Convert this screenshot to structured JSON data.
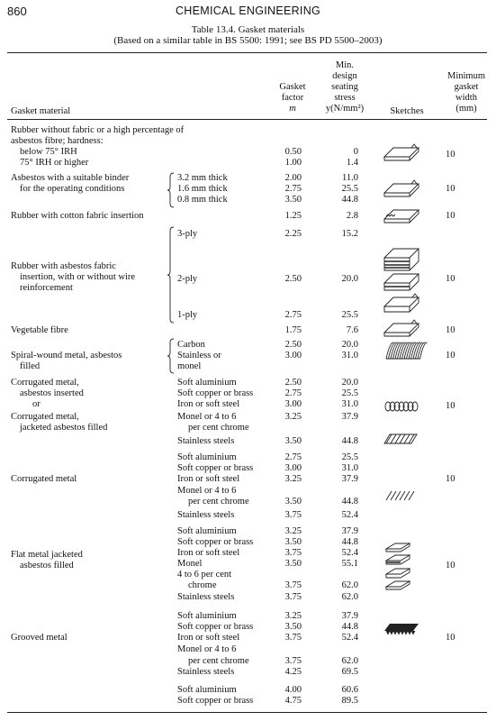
{
  "page": {
    "number": "860",
    "running_head": "CHEMICAL ENGINEERING"
  },
  "caption": {
    "line1": "Table 13.4.   Gasket materials",
    "line2": "(Based on a similar table in BS 5500: 1991; see BS PD 5500–2003)"
  },
  "headers": {
    "material": "Gasket material",
    "factor_l1": "Gasket",
    "factor_l2": "factor",
    "factor_l3": "m",
    "stress_l1": "Min.",
    "stress_l2": "design",
    "stress_l3": "seating",
    "stress_l4": "stress",
    "stress_l5": "y(N/mm²)",
    "sketches": "Sketches",
    "width_l1": "Minimum",
    "width_l2": "gasket",
    "width_l3": "width",
    "width_l4": "(mm)"
  },
  "rows": [
    {
      "material": [
        "Rubber without fabric or a high percentage of",
        "asbestos fibre; hardness:",
        "below 75° IRH",
        "75° IRH or higher"
      ],
      "m": [
        "0.50",
        "1.00"
      ],
      "y": [
        "0",
        "1.4"
      ],
      "width": "10"
    },
    {
      "material": [
        "Asbestos with a suitable binder",
        "for the operating conditions"
      ],
      "sub": [
        "3.2 mm thick",
        "1.6 mm thick",
        "0.8 mm thick"
      ],
      "m": [
        "2.00",
        "2.75",
        "3.50"
      ],
      "y": [
        "11.0",
        "25.5",
        "44.8"
      ],
      "width": "10"
    },
    {
      "material": [
        "Rubber with cotton fabric insertion"
      ],
      "m": [
        "1.25"
      ],
      "y": [
        "2.8"
      ],
      "width": "10"
    },
    {
      "material": [
        "Rubber with asbestos fabric",
        "insertion, with or without wire",
        "reinforcement"
      ],
      "sub": [
        "3-ply",
        "2-ply",
        "1-ply"
      ],
      "m": [
        "2.25",
        "2.50",
        "2.75"
      ],
      "y": [
        "15.2",
        "20.0",
        "25.5"
      ],
      "width": "10"
    },
    {
      "material": [
        "Vegetable fibre"
      ],
      "m": [
        "1.75"
      ],
      "y": [
        "7.6"
      ],
      "width": "10"
    },
    {
      "material": [
        "Spiral-wound metal, asbestos",
        "filled"
      ],
      "sub": [
        "Carbon",
        "Stainless or",
        "monel"
      ],
      "m": [
        "2.50",
        "3.00"
      ],
      "y": [
        "20.0",
        "31.0"
      ],
      "width": "10"
    },
    {
      "material": [
        "Corrugated metal,",
        "asbestos inserted",
        "or",
        "Corrugated metal,",
        "jacketed asbestos filled"
      ],
      "sub": [
        "Soft aluminium",
        "Soft copper or brass",
        "Iron or soft steel",
        "Monel or 4 to 6",
        "per cent chrome",
        "Stainless steels"
      ],
      "m": [
        "2.50",
        "2.75",
        "3.00",
        "3.25",
        "3.50"
      ],
      "y": [
        "20.0",
        "25.5",
        "31.0",
        "37.9",
        "44.8"
      ],
      "width": "10"
    },
    {
      "material": [
        "Corrugated metal"
      ],
      "sub": [
        "Soft aluminium",
        "Soft copper or brass",
        "Iron or soft steel",
        "Monel or 4 to 6",
        "per cent chrome",
        "Stainless steels"
      ],
      "m": [
        "2.75",
        "3.00",
        "3.25",
        "3.50",
        "3.75"
      ],
      "y": [
        "25.5",
        "31.0",
        "37.9",
        "44.8",
        "52.4"
      ],
      "width": "10"
    },
    {
      "material": [
        "Flat metal jacketed",
        "asbestos filled"
      ],
      "sub": [
        "Soft aluminium",
        "Soft copper or brass",
        "Iron or soft steel",
        "Monel",
        "4 to 6 per cent",
        "chrome",
        "Stainless steels"
      ],
      "m": [
        "3.25",
        "3.50",
        "3.75",
        "3.50",
        "3.75",
        "3.75"
      ],
      "y": [
        "37.9",
        "44.8",
        "52.4",
        "55.1",
        "62.0",
        "62.0"
      ],
      "width": "10"
    },
    {
      "material": [
        "Grooved metal"
      ],
      "sub": [
        "Soft aluminium",
        "Soft copper or brass",
        "Iron or soft steel",
        "Monel or 4 to 6",
        "per cent chrome",
        "Stainless steels"
      ],
      "m": [
        "3.25",
        "3.50",
        "3.75",
        "3.75",
        "4.25"
      ],
      "y": [
        "37.9",
        "44.8",
        "52.4",
        "62.0",
        "69.5"
      ],
      "width": "10"
    },
    {
      "material": [],
      "sub": [
        "Soft aluminium",
        "Soft copper or brass"
      ],
      "m": [
        "4.00",
        "4.75"
      ],
      "y": [
        "60.6",
        "89.5"
      ],
      "width": ""
    }
  ]
}
